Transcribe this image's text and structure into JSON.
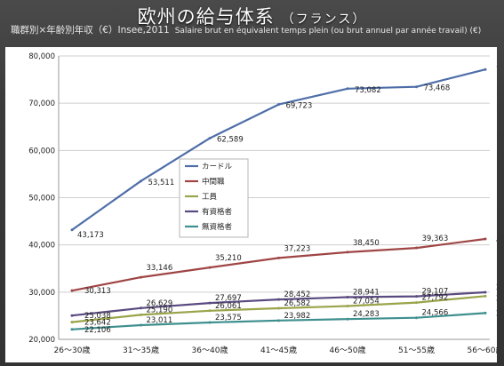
{
  "header": {
    "title": "欧州の給与体系",
    "title_sub": "（フランス）",
    "subtitle": "職群別×年齢別年収（€）Insee,2011",
    "subtitle_source": "Salaire brut en équivalent temps plein (ou brut annuel par année travail) (€)"
  },
  "chart_data": {
    "type": "line",
    "categories": [
      "26～30歳",
      "31～35歳",
      "36～40歳",
      "41～45歳",
      "46～50歳",
      "51～55歳",
      "56～60歳"
    ],
    "ylim": [
      20000,
      80000
    ],
    "yticks": [
      20000,
      30000,
      40000,
      50000,
      60000,
      70000,
      80000
    ],
    "ytick_labels": [
      "20,000",
      "30,000",
      "40,000",
      "50,000",
      "60,000",
      "70,000",
      "80,000"
    ],
    "grid": true,
    "legend_position": "center-left",
    "series": [
      {
        "name": "カードル",
        "color": "#4f6ea8",
        "values": [
          43173,
          53511,
          62589,
          69723,
          73082,
          73468,
          77132
        ],
        "labels": [
          "43,173",
          "53,511",
          "62,589",
          "69,723",
          "73,082",
          "73,468",
          "77,132"
        ]
      },
      {
        "name": "中間職",
        "color": "#a04545",
        "values": [
          30313,
          33146,
          35210,
          37223,
          38450,
          39363,
          41261
        ],
        "labels": [
          "30,313",
          "33,146",
          "35,210",
          "37,223",
          "38,450",
          "39,363",
          "41,261"
        ]
      },
      {
        "name": "工員",
        "color": "#9aa44a",
        "values": [
          23642,
          25190,
          26061,
          26582,
          27054,
          27792,
          29154
        ],
        "labels": [
          "23,642",
          "25,190",
          "26,061",
          "26,582",
          "27,054",
          "27,792",
          "29,154"
        ]
      },
      {
        "name": "有資格者",
        "color": "#5a4a80",
        "values": [
          25038,
          26629,
          27697,
          28452,
          28941,
          29107,
          29977
        ],
        "labels": [
          "25,038",
          "26,629",
          "27,697",
          "28,452",
          "28,941",
          "29,107",
          "29,977"
        ]
      },
      {
        "name": "無資格者",
        "color": "#3f8f8f",
        "values": [
          22106,
          23011,
          23575,
          23982,
          24283,
          24566,
          25575
        ],
        "labels": [
          "22,106",
          "23,011",
          "23,575",
          "23,982",
          "24,283",
          "24,566",
          "25,575"
        ]
      }
    ]
  }
}
